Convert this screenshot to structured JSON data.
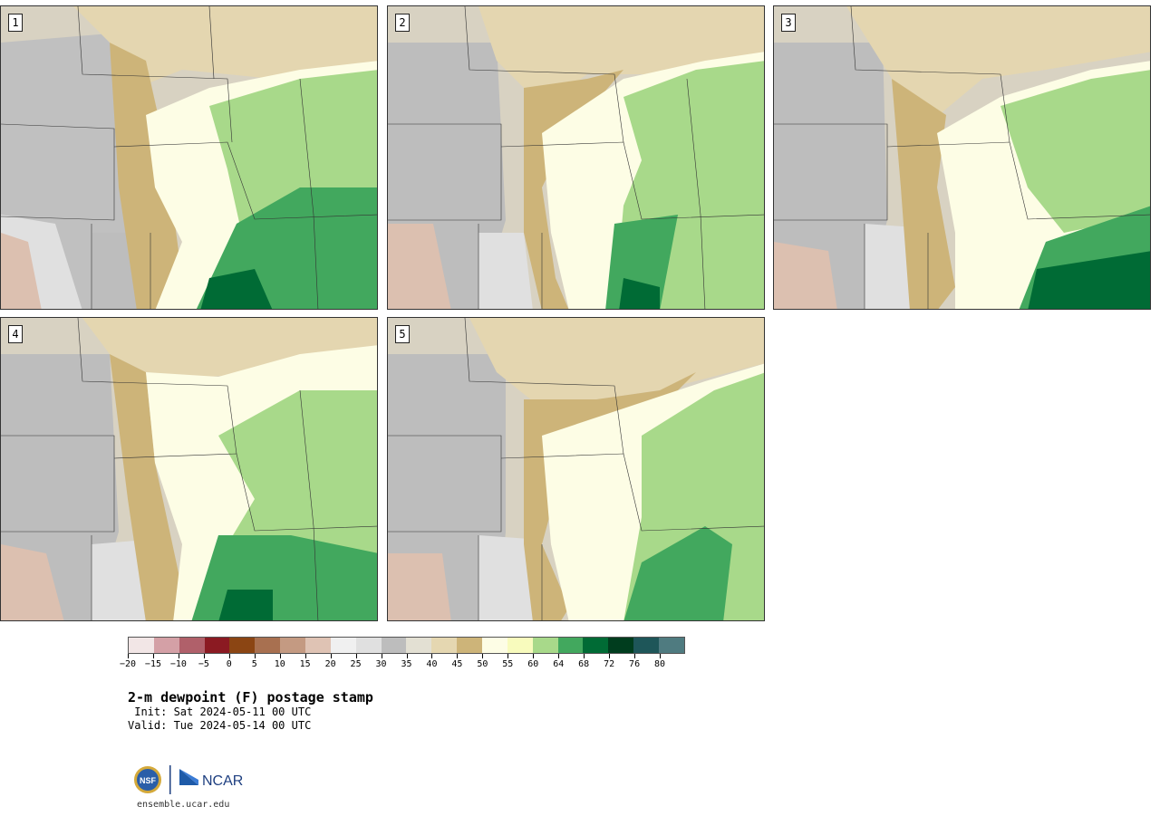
{
  "panels": [
    {
      "label": "1"
    },
    {
      "label": "2"
    },
    {
      "label": "3"
    },
    {
      "label": "4"
    },
    {
      "label": "5"
    }
  ],
  "colorbar": {
    "colors": [
      "#f2e6e6",
      "#d4a0a6",
      "#b0606a",
      "#8b1a22",
      "#8b4513",
      "#a87050",
      "#c49a82",
      "#dfc3b4",
      "#f0f0f0",
      "#e0e0e0",
      "#bdbdbd",
      "#e3e0d3",
      "#e5d7b1",
      "#cdb479",
      "#fdfde5",
      "#f8fbbd",
      "#a8d98a",
      "#42a85e",
      "#006b35",
      "#003d1e",
      "#1e5659",
      "#4f7b80"
    ],
    "tick_labels": [
      "−20",
      "−15",
      "−10",
      "−5",
      "0",
      "5",
      "10",
      "15",
      "20",
      "25",
      "30",
      "35",
      "40",
      "45",
      "50",
      "55",
      "60",
      "64",
      "68",
      "72",
      "76",
      "80"
    ]
  },
  "title": "2-m dewpoint (F) postage stamp",
  "init": " Init: Sat 2024-05-11 00 UTC",
  "valid": "Valid: Tue 2024-05-14 00 UTC",
  "logo": {
    "nsf_text": "NSF",
    "ncar_text": "NCAR"
  },
  "url": "ensemble.ucar.edu"
}
